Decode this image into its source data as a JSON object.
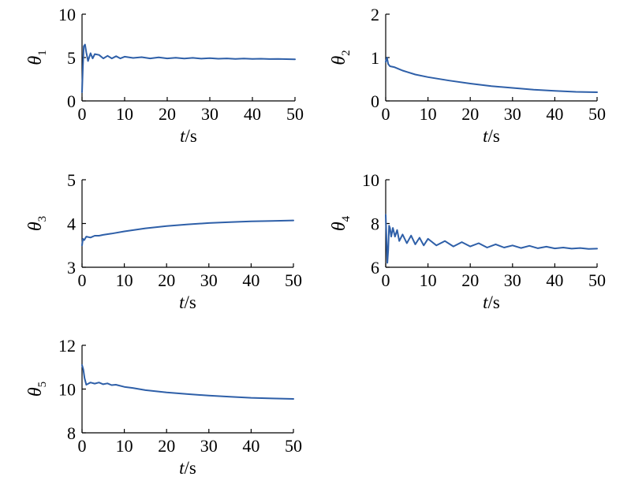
{
  "chart_data": [
    {
      "type": "line",
      "ylabel": "θ",
      "ylabel_sub": "1",
      "xlabel_var": "t",
      "xlabel_unit": "/s",
      "xlim": [
        0,
        50
      ],
      "ylim": [
        0,
        10
      ],
      "xticks": [
        0,
        10,
        20,
        30,
        40,
        50
      ],
      "yticks": [
        0,
        5,
        10
      ],
      "xtick_labels": [
        "0",
        "10",
        "20",
        "30",
        "40",
        "50"
      ],
      "ytick_labels": [
        "0",
        "5",
        "10"
      ],
      "grid": false,
      "color": "#2e5fa8",
      "series": [
        {
          "x": [
            0,
            0.2,
            0.4,
            0.7,
            1.0,
            1.4,
            2,
            2.5,
            3,
            4,
            5,
            6,
            7,
            8,
            9,
            10,
            12,
            14,
            16,
            18,
            20,
            22,
            24,
            26,
            28,
            30,
            32,
            34,
            36,
            38,
            40,
            42,
            44,
            46,
            48,
            50
          ],
          "y": [
            1.0,
            4.0,
            6.3,
            6.5,
            5.6,
            4.6,
            5.5,
            4.9,
            5.4,
            5.3,
            4.9,
            5.2,
            4.9,
            5.15,
            4.9,
            5.1,
            4.95,
            5.05,
            4.9,
            5.02,
            4.9,
            4.98,
            4.88,
            4.96,
            4.87,
            4.93,
            4.86,
            4.9,
            4.85,
            4.88,
            4.84,
            4.86,
            4.83,
            4.84,
            4.82,
            4.8
          ]
        }
      ]
    },
    {
      "type": "line",
      "ylabel": "θ",
      "ylabel_sub": "2",
      "xlabel_var": "t",
      "xlabel_unit": "/s",
      "xlim": [
        0,
        50
      ],
      "ylim": [
        0,
        2
      ],
      "xticks": [
        0,
        10,
        20,
        30,
        40,
        50
      ],
      "yticks": [
        0,
        1,
        2
      ],
      "xtick_labels": [
        "0",
        "10",
        "20",
        "30",
        "40",
        "50"
      ],
      "ytick_labels": [
        "0",
        "1",
        "2"
      ],
      "grid": false,
      "color": "#2e5fa8",
      "series": [
        {
          "x": [
            0,
            0.3,
            0.6,
            1,
            2,
            3,
            4,
            5,
            7,
            10,
            15,
            20,
            25,
            30,
            35,
            40,
            45,
            50
          ],
          "y": [
            0.9,
            1.0,
            0.85,
            0.8,
            0.78,
            0.74,
            0.7,
            0.67,
            0.61,
            0.55,
            0.47,
            0.4,
            0.34,
            0.3,
            0.26,
            0.23,
            0.21,
            0.2
          ]
        }
      ]
    },
    {
      "type": "line",
      "ylabel": "θ",
      "ylabel_sub": "3",
      "xlabel_var": "t",
      "xlabel_unit": "/s",
      "xlim": [
        0,
        50
      ],
      "ylim": [
        3,
        5
      ],
      "xticks": [
        0,
        10,
        20,
        30,
        40,
        50
      ],
      "yticks": [
        3,
        4,
        5
      ],
      "xtick_labels": [
        "0",
        "10",
        "20",
        "30",
        "40",
        "50"
      ],
      "ytick_labels": [
        "3",
        "4",
        "5"
      ],
      "grid": false,
      "color": "#2e5fa8",
      "series": [
        {
          "x": [
            0,
            0.2,
            0.5,
            1,
            2,
            3,
            4,
            5,
            7,
            10,
            15,
            20,
            25,
            30,
            35,
            40,
            45,
            50
          ],
          "y": [
            3.5,
            3.65,
            3.62,
            3.7,
            3.68,
            3.72,
            3.72,
            3.74,
            3.77,
            3.82,
            3.89,
            3.94,
            3.98,
            4.01,
            4.03,
            4.05,
            4.06,
            4.07
          ]
        }
      ]
    },
    {
      "type": "line",
      "ylabel": "θ",
      "ylabel_sub": "4",
      "xlabel_var": "t",
      "xlabel_unit": "/s",
      "xlim": [
        0,
        50
      ],
      "ylim": [
        6,
        10
      ],
      "xticks": [
        0,
        10,
        20,
        30,
        40,
        50
      ],
      "yticks": [
        6,
        8,
        10
      ],
      "xtick_labels": [
        "0",
        "10",
        "20",
        "30",
        "40",
        "50"
      ],
      "ytick_labels": [
        "6",
        "8",
        "10"
      ],
      "grid": false,
      "color": "#2e5fa8",
      "series": [
        {
          "x": [
            0,
            0.2,
            0.4,
            0.6,
            0.8,
            1.0,
            1.3,
            1.7,
            2.2,
            2.7,
            3.2,
            4,
            5,
            6,
            7,
            8,
            9,
            10,
            12,
            14,
            16,
            18,
            20,
            22,
            24,
            26,
            28,
            30,
            32,
            34,
            36,
            38,
            40,
            42,
            44,
            46,
            48,
            50
          ],
          "y": [
            8.4,
            7.2,
            6.2,
            6.8,
            7.9,
            7.8,
            7.4,
            7.8,
            7.4,
            7.7,
            7.2,
            7.5,
            7.1,
            7.45,
            7.05,
            7.35,
            7.0,
            7.3,
            7.0,
            7.2,
            6.95,
            7.15,
            6.95,
            7.1,
            6.9,
            7.05,
            6.9,
            7.0,
            6.88,
            6.98,
            6.87,
            6.94,
            6.86,
            6.9,
            6.85,
            6.88,
            6.84,
            6.85
          ]
        }
      ]
    },
    {
      "type": "line",
      "ylabel": "θ",
      "ylabel_sub": "5",
      "xlabel_var": "t",
      "xlabel_unit": "/s",
      "xlim": [
        0,
        50
      ],
      "ylim": [
        8,
        12
      ],
      "xticks": [
        0,
        10,
        20,
        30,
        40,
        50
      ],
      "yticks": [
        8,
        10,
        12
      ],
      "xtick_labels": [
        "0",
        "10",
        "20",
        "30",
        "40",
        "50"
      ],
      "ytick_labels": [
        "8",
        "10",
        "12"
      ],
      "grid": false,
      "color": "#2e5fa8",
      "series": [
        {
          "x": [
            0,
            0.3,
            0.6,
            1.0,
            1.5,
            2,
            3,
            4,
            5,
            6,
            7,
            8,
            10,
            12,
            15,
            20,
            25,
            30,
            35,
            40,
            45,
            50
          ],
          "y": [
            11.1,
            10.9,
            10.5,
            10.2,
            10.25,
            10.3,
            10.25,
            10.3,
            10.22,
            10.26,
            10.18,
            10.2,
            10.1,
            10.05,
            9.95,
            9.85,
            9.77,
            9.7,
            9.65,
            9.6,
            9.57,
            9.55
          ]
        }
      ]
    }
  ]
}
